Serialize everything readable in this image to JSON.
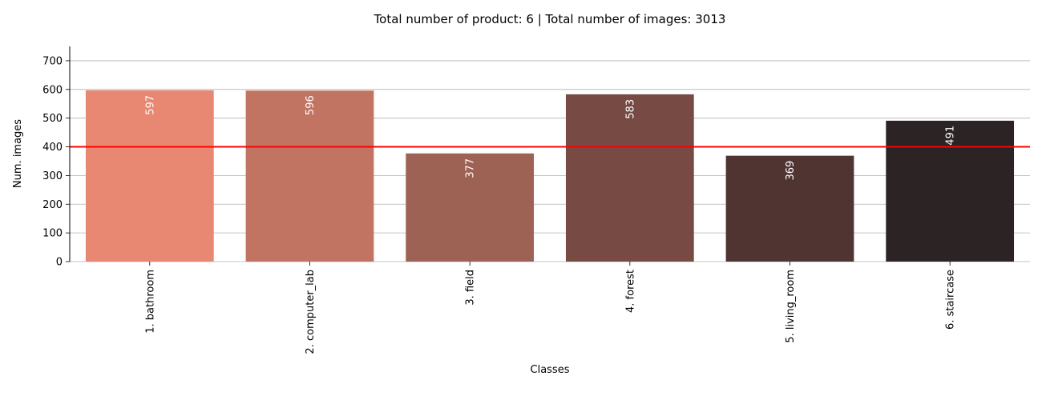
{
  "chart_data": {
    "type": "bar",
    "title": "Total number of product: 6 |  Total number of images:  3013",
    "xlabel": "Classes",
    "ylabel": "Num. images",
    "categories": [
      "1. bathroom",
      "2. computer_lab",
      "3. field",
      "4. forest",
      "5. living_room",
      "6. staircase"
    ],
    "values": [
      597,
      596,
      377,
      583,
      369,
      491
    ],
    "data_labels": [
      "597",
      "596",
      "377",
      "583",
      "369",
      "491"
    ],
    "colors": [
      "#e88872",
      "#c27462",
      "#9e6254",
      "#774a43",
      "#4f3432",
      "#2c2424"
    ],
    "ylim": [
      0,
      750
    ],
    "yticks": [
      0,
      100,
      200,
      300,
      400,
      500,
      600,
      700
    ],
    "ytick_labels": [
      "0",
      "100",
      "200",
      "300",
      "400",
      "500",
      "600",
      "700"
    ],
    "reference_line": {
      "value": 400,
      "color": "#ff0000"
    },
    "grid": "horizontal",
    "legend": "none"
  }
}
